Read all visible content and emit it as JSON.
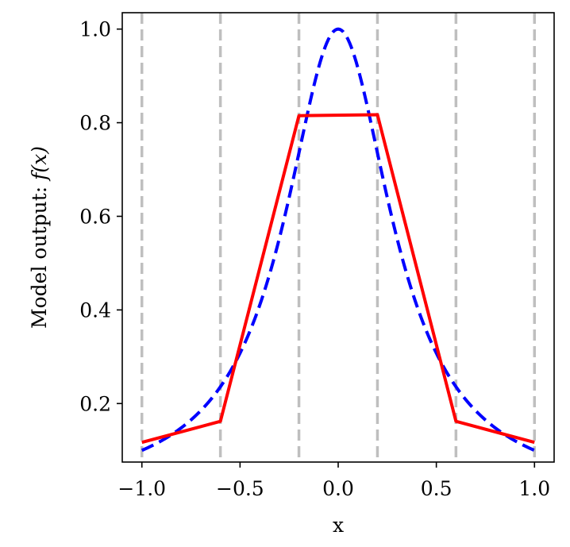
{
  "chart_data": {
    "type": "line",
    "title": "",
    "xlabel": "x",
    "ylabel": "Model output: ",
    "ylabel_math": "f(x)",
    "xlim": [
      -1.1,
      1.1
    ],
    "ylim": [
      0.075,
      1.035
    ],
    "xticks": [
      -1.0,
      -0.5,
      0.0,
      0.5,
      1.0
    ],
    "xtick_labels": [
      "−1.0",
      "−0.5",
      "0.0",
      "0.5",
      "1.0"
    ],
    "yticks": [
      0.2,
      0.4,
      0.6,
      0.8,
      1.0
    ],
    "ytick_labels": [
      "0.2",
      "0.4",
      "0.6",
      "0.8",
      "1.0"
    ],
    "grid": false,
    "vlines": {
      "x": [
        -1.0,
        -0.6,
        -0.2,
        0.2,
        0.6,
        1.0
      ],
      "color": "#bfbfbf",
      "style": "dashed"
    },
    "series": [
      {
        "kind": "curve",
        "function": "1/(1+9x^2)",
        "color": "#0000ff",
        "style": "dashed",
        "x_range": [
          -1.0,
          1.0
        ]
      },
      {
        "kind": "polyline",
        "color": "#ff0000",
        "style": "solid",
        "x": [
          -1.0,
          -0.6,
          -0.2,
          0.2,
          0.6,
          1.0
        ],
        "y": [
          0.117,
          0.162,
          0.815,
          0.817,
          0.162,
          0.117
        ]
      }
    ]
  }
}
